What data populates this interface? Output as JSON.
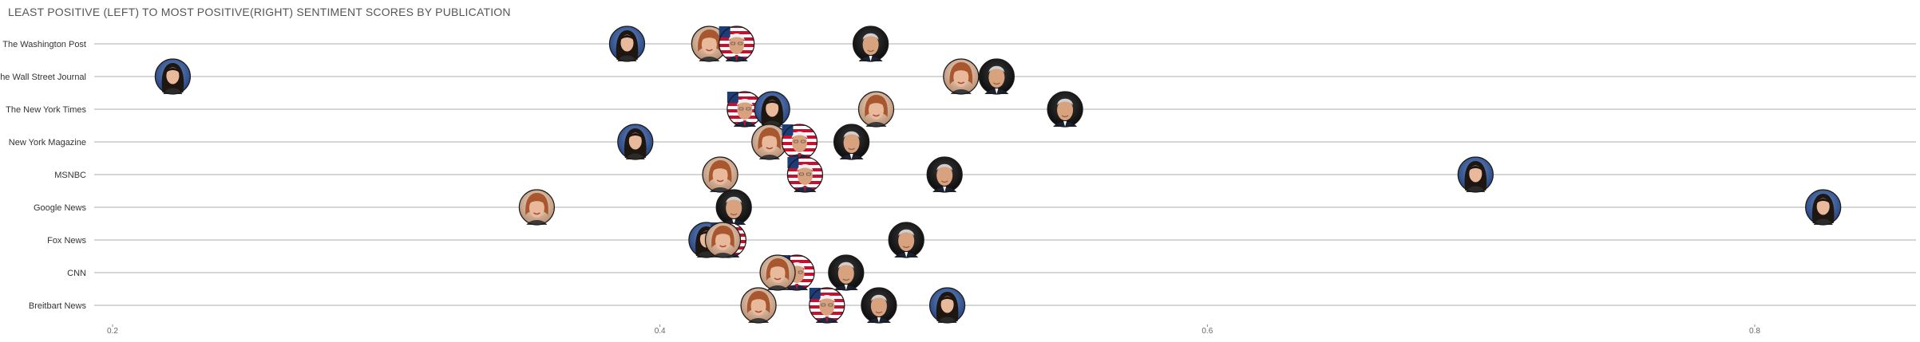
{
  "chart_data": {
    "type": "scatter",
    "title": "LEAST POSITIVE (LEFT) TO MOST POSITIVE(RIGHT) SENTIMENT SCORES BY PUBLICATION",
    "xlabel": "",
    "ylabel": "",
    "xlim": [
      0.2,
      0.85
    ],
    "x_ticks": [
      "0.2",
      "0.4",
      "0.6",
      "0.8"
    ],
    "grid": true,
    "legend": "none",
    "categories": [
      "The Washington Post",
      "The Wall Street Journal",
      "The New York Times",
      "New York Magazine",
      "MSNBC",
      "Google News",
      "Fox News",
      "CNN",
      "Breitbart News"
    ],
    "points": [
      {
        "row": "The Washington Post",
        "x": 0.388,
        "marker": "woman-dark-hair"
      },
      {
        "row": "The Washington Post",
        "x": 0.418,
        "marker": "woman-reddish-hair"
      },
      {
        "row": "The Washington Post",
        "x": 0.428,
        "marker": "man-white-hair-flag"
      },
      {
        "row": "The Washington Post",
        "x": 0.477,
        "marker": "man-grey-hair"
      },
      {
        "row": "The Wall Street Journal",
        "x": 0.222,
        "marker": "woman-dark-hair"
      },
      {
        "row": "The Wall Street Journal",
        "x": 0.51,
        "marker": "woman-reddish-hair"
      },
      {
        "row": "The Wall Street Journal",
        "x": 0.523,
        "marker": "man-grey-hair"
      },
      {
        "row": "The New York Times",
        "x": 0.431,
        "marker": "man-white-hair-flag"
      },
      {
        "row": "The New York Times",
        "x": 0.441,
        "marker": "woman-dark-hair"
      },
      {
        "row": "The New York Times",
        "x": 0.479,
        "marker": "woman-reddish-hair"
      },
      {
        "row": "The New York Times",
        "x": 0.548,
        "marker": "man-grey-hair"
      },
      {
        "row": "New York Magazine",
        "x": 0.391,
        "marker": "woman-dark-hair"
      },
      {
        "row": "New York Magazine",
        "x": 0.44,
        "marker": "woman-reddish-hair"
      },
      {
        "row": "New York Magazine",
        "x": 0.451,
        "marker": "man-white-hair-flag"
      },
      {
        "row": "New York Magazine",
        "x": 0.47,
        "marker": "man-grey-hair"
      },
      {
        "row": "MSNBC",
        "x": 0.422,
        "marker": "woman-reddish-hair"
      },
      {
        "row": "MSNBC",
        "x": 0.453,
        "marker": "man-white-hair-flag"
      },
      {
        "row": "MSNBC",
        "x": 0.504,
        "marker": "man-grey-hair"
      },
      {
        "row": "MSNBC",
        "x": 0.698,
        "marker": "woman-dark-hair"
      },
      {
        "row": "Google News",
        "x": 0.355,
        "marker": "woman-reddish-hair"
      },
      {
        "row": "Google News",
        "x": 0.427,
        "marker": "man-grey-hair"
      },
      {
        "row": "Google News",
        "x": 0.825,
        "marker": "woman-dark-hair"
      },
      {
        "row": "Fox News",
        "x": 0.417,
        "marker": "woman-dark-hair"
      },
      {
        "row": "Fox News",
        "x": 0.425,
        "marker": "man-white-hair-flag"
      },
      {
        "row": "Fox News",
        "x": 0.423,
        "marker": "woman-reddish-hair"
      },
      {
        "row": "Fox News",
        "x": 0.49,
        "marker": "man-grey-hair"
      },
      {
        "row": "CNN",
        "x": 0.45,
        "marker": "man-white-hair-flag"
      },
      {
        "row": "CNN",
        "x": 0.443,
        "marker": "woman-reddish-hair"
      },
      {
        "row": "CNN",
        "x": 0.468,
        "marker": "man-grey-hair"
      },
      {
        "row": "Breitbart News",
        "x": 0.436,
        "marker": "woman-reddish-hair"
      },
      {
        "row": "Breitbart News",
        "x": 0.461,
        "marker": "man-white-hair-flag"
      },
      {
        "row": "Breitbart News",
        "x": 0.48,
        "marker": "man-grey-hair"
      },
      {
        "row": "Breitbart News",
        "x": 0.505,
        "marker": "woman-dark-hair"
      }
    ]
  }
}
